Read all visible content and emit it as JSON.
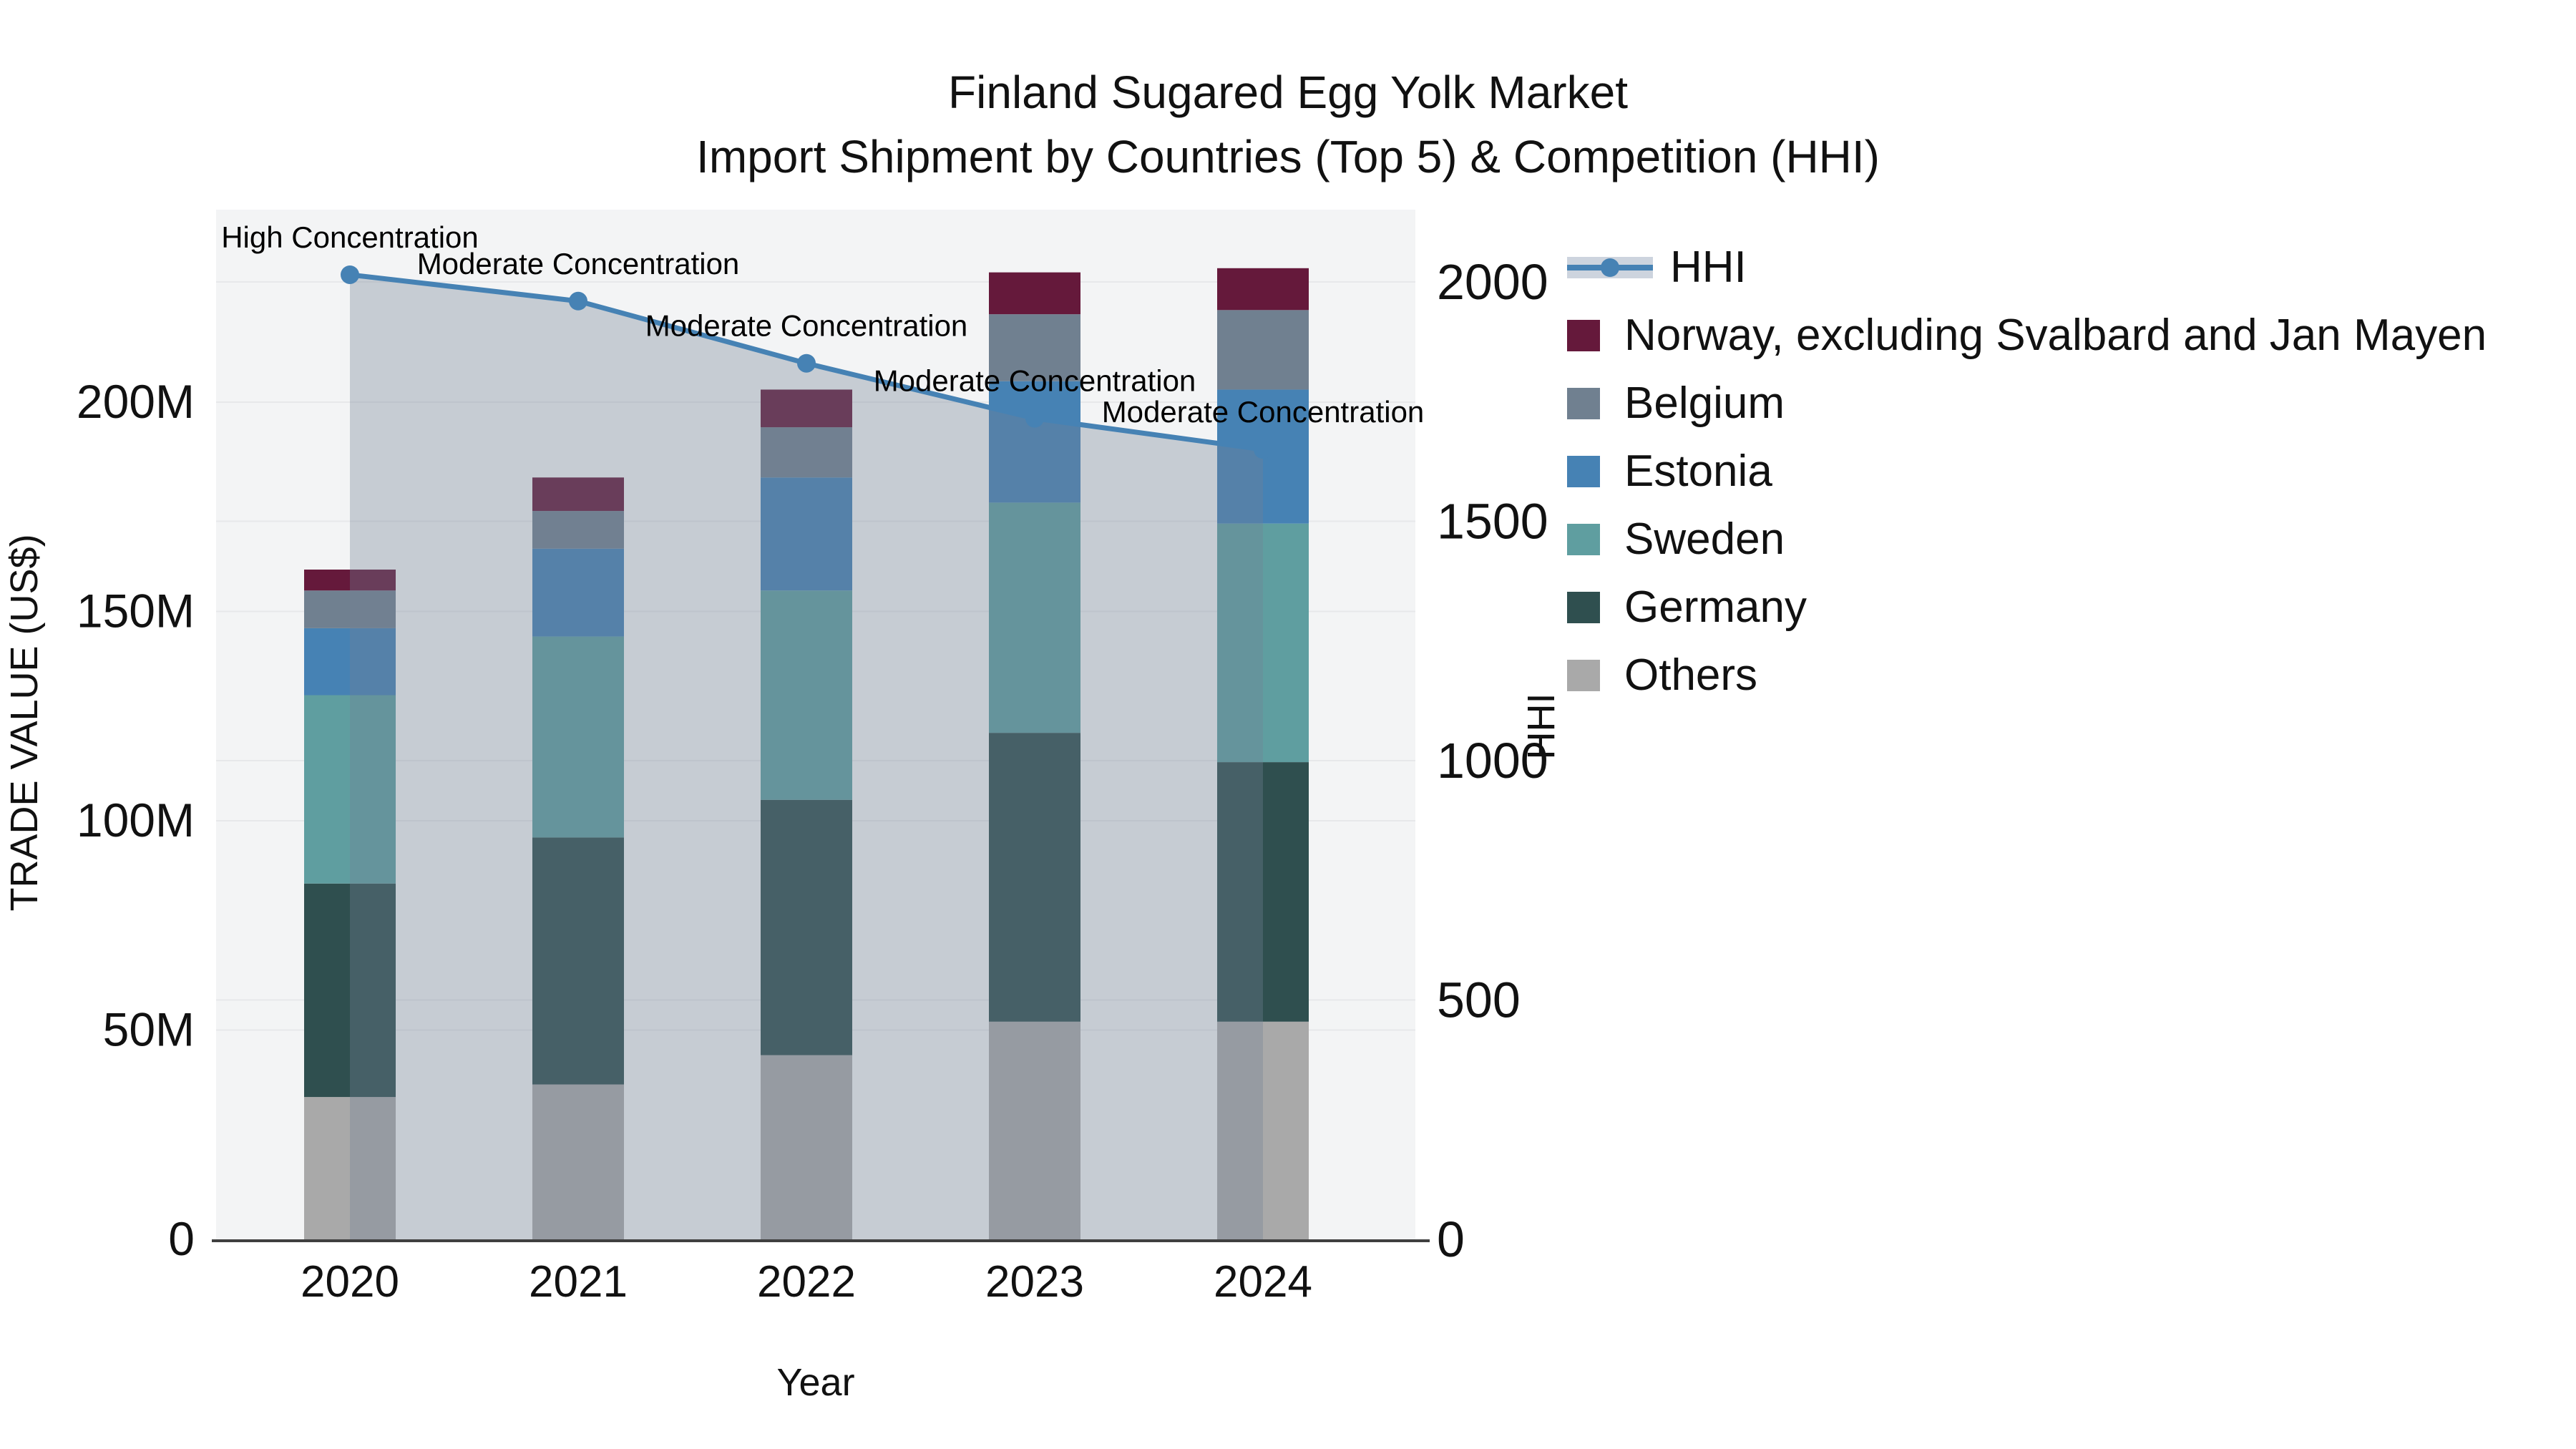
{
  "title": {
    "line1": "Finland Sugared Egg Yolk Market",
    "line2": "Import Shipment by Countries (Top 5) & Competition (HHI)"
  },
  "axes": {
    "x": {
      "label": "Year",
      "tick_labels": [
        "2020",
        "2021",
        "2022",
        "2023",
        "2024"
      ]
    },
    "y_left": {
      "label": "TRADE VALUE (US$)",
      "tick_labels": [
        "0",
        "50M",
        "100M",
        "150M",
        "200M"
      ],
      "tick_values": [
        0,
        50,
        100,
        150,
        200
      ]
    },
    "y_right": {
      "label": "HHI",
      "tick_labels": [
        "0",
        "500",
        "1000",
        "1500",
        "2000"
      ],
      "tick_values": [
        0,
        500,
        1000,
        1500,
        2000
      ]
    }
  },
  "chart_data": {
    "type": "bar",
    "subtype": "stacked bars (left axis, trade value in millions US$) + HHI line with shaded area (right axis)",
    "categories": [
      "2020",
      "2021",
      "2022",
      "2023",
      "2024"
    ],
    "values_unit": "millions US$",
    "stack_order_bottom_to_top": [
      "Others",
      "Germany",
      "Sweden",
      "Estonia",
      "Belgium",
      "Norway, excluding Svalbard and Jan Mayen"
    ],
    "series": [
      {
        "name": "Others",
        "color": "#a9a9a9",
        "values": [
          34,
          37,
          44,
          52,
          52
        ]
      },
      {
        "name": "Germany",
        "color": "#2f4f4f",
        "values": [
          51,
          59,
          61,
          69,
          62
        ]
      },
      {
        "name": "Sweden",
        "color": "#5f9ea0",
        "values": [
          45,
          48,
          50,
          55,
          57
        ]
      },
      {
        "name": "Estonia",
        "color": "#4682b4",
        "values": [
          16,
          21,
          27,
          29,
          32
        ]
      },
      {
        "name": "Belgium",
        "color": "#708090",
        "values": [
          9,
          9,
          12,
          16,
          19
        ]
      },
      {
        "name": "Norway, excluding Svalbard and Jan Mayen",
        "color": "#65193b",
        "values": [
          5,
          8,
          9,
          10,
          10
        ]
      }
    ],
    "bar_totals": [
      160,
      182,
      203,
      231,
      232
    ],
    "line": {
      "name": "HHI",
      "axis": "right",
      "color": "#4682b4",
      "area_fill": "rgba(115,130,150,0.35)",
      "values": [
        2015,
        1960,
        1830,
        1715,
        1650
      ]
    },
    "annotations": [
      {
        "category": "2020",
        "text": "High Concentration"
      },
      {
        "category": "2021",
        "text": "Moderate Concentration"
      },
      {
        "category": "2022",
        "text": "Moderate Concentration"
      },
      {
        "category": "2023",
        "text": "Moderate Concentration"
      },
      {
        "category": "2024",
        "text": "Moderate Concentration"
      }
    ],
    "axis_ranges": {
      "left_max_M": 246,
      "right_max_HHI": 2151
    },
    "grid": true,
    "legend_position": "right"
  },
  "legend": {
    "items": [
      {
        "label": "HHI",
        "type": "line",
        "color": "#4682b4"
      },
      {
        "label": "Norway, excluding Svalbard and Jan Mayen",
        "type": "patch",
        "color": "#65193b"
      },
      {
        "label": "Belgium",
        "type": "patch",
        "color": "#708090"
      },
      {
        "label": "Estonia",
        "type": "patch",
        "color": "#4682b4"
      },
      {
        "label": "Sweden",
        "type": "patch",
        "color": "#5f9ea0"
      },
      {
        "label": "Germany",
        "type": "patch",
        "color": "#2f4f4f"
      },
      {
        "label": "Others",
        "type": "patch",
        "color": "#a9a9a9"
      }
    ]
  },
  "colors": {
    "plot_bg": "#f3f4f5",
    "gridline": "#e7e8ea",
    "spine": "#3f3f3f",
    "text": "#111111"
  }
}
